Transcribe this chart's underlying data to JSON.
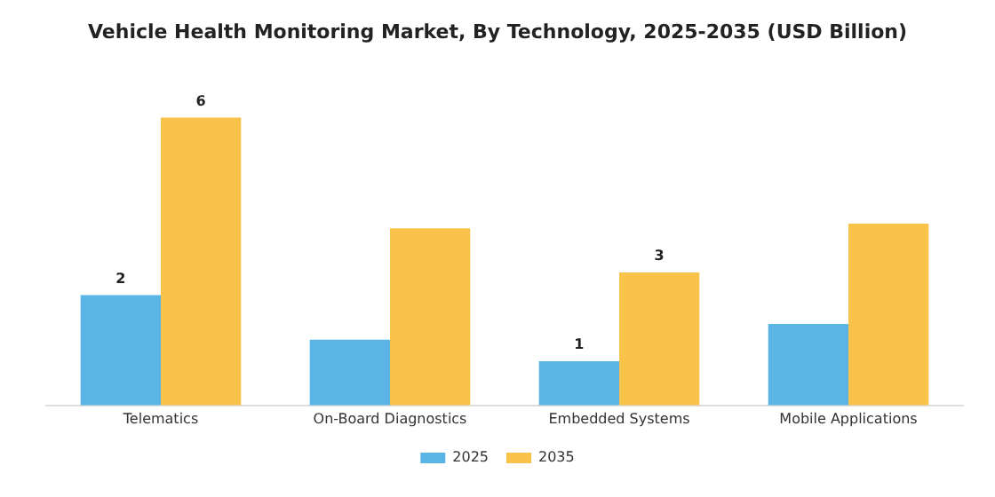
{
  "chart_data": {
    "type": "bar",
    "title": "Vehicle Health Monitoring Market, By Technology, 2025-2035 (USD Billion)",
    "categories": [
      "Telematics",
      "On-Board Diagnostics",
      "Embedded Systems",
      "Mobile Applications"
    ],
    "series": [
      {
        "name": "2025",
        "color": "#5ab4e5",
        "values": [
          2.3,
          1.37,
          0.92,
          1.7
        ],
        "value_labels": [
          "2",
          null,
          "1",
          null
        ]
      },
      {
        "name": "2035",
        "color": "#f9c34a",
        "values": [
          6.0,
          3.69,
          2.77,
          3.79
        ],
        "value_labels": [
          "6",
          null,
          "3",
          null
        ]
      }
    ],
    "tick_labels": "x",
    "grid": false,
    "legend": "bottom"
  }
}
